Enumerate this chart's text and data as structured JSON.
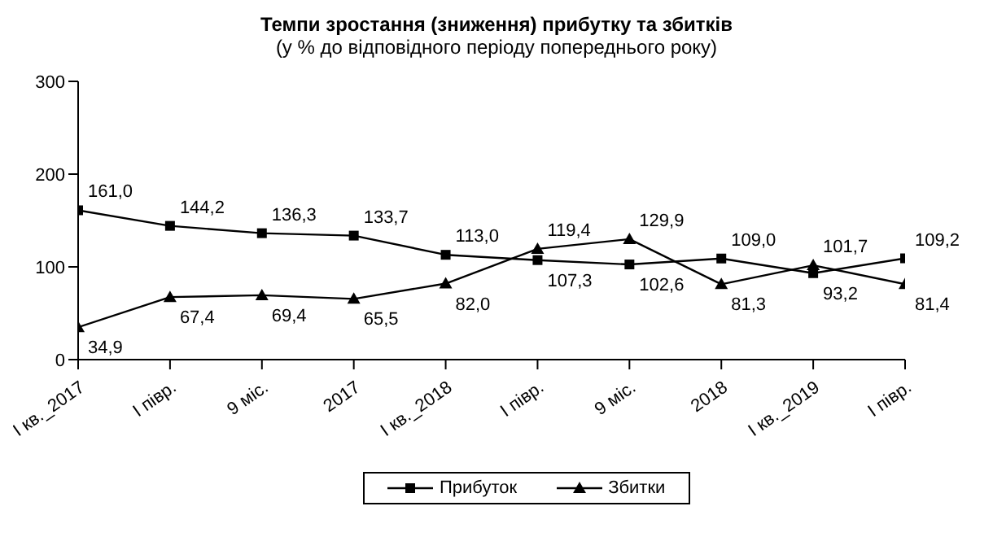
{
  "chart_data": {
    "type": "line",
    "title": "Темпи зростання (зниження) прибутку та збитків",
    "subtitle": "(у % до відповідного періоду попереднього року)",
    "categories": [
      "І кв._2017",
      "І півр.",
      "9 міс.",
      "2017",
      "І кв._2018",
      "І півр.",
      "9 міс.",
      "2018",
      "І кв._2019",
      "І півр."
    ],
    "series": [
      {
        "name": "Прибуток",
        "color": "#000000",
        "marker": "square",
        "values": [
          161.0,
          144.2,
          136.3,
          133.7,
          113.0,
          107.3,
          102.6,
          109.0,
          93.2,
          109.2
        ],
        "value_labels": [
          "161,0",
          "144,2",
          "136,3",
          "133,7",
          "113,0",
          "107,3",
          "102,6",
          "109,0",
          "93,2",
          "109,2"
        ]
      },
      {
        "name": "Збитки",
        "color": "#000000",
        "marker": "triangle",
        "values": [
          34.9,
          67.4,
          69.4,
          65.5,
          82.0,
          119.4,
          129.9,
          81.3,
          101.7,
          81.4
        ],
        "value_labels": [
          "34,9",
          "67,4",
          "69,4",
          "65,5",
          "82,0",
          "119,4",
          "129,9",
          "81,3",
          "101,7",
          "81,4"
        ]
      }
    ],
    "ylim": [
      0,
      300
    ],
    "yticks": [
      0,
      100,
      200,
      300
    ],
    "grid": false,
    "legend": "bottom",
    "line_style": "solid"
  }
}
